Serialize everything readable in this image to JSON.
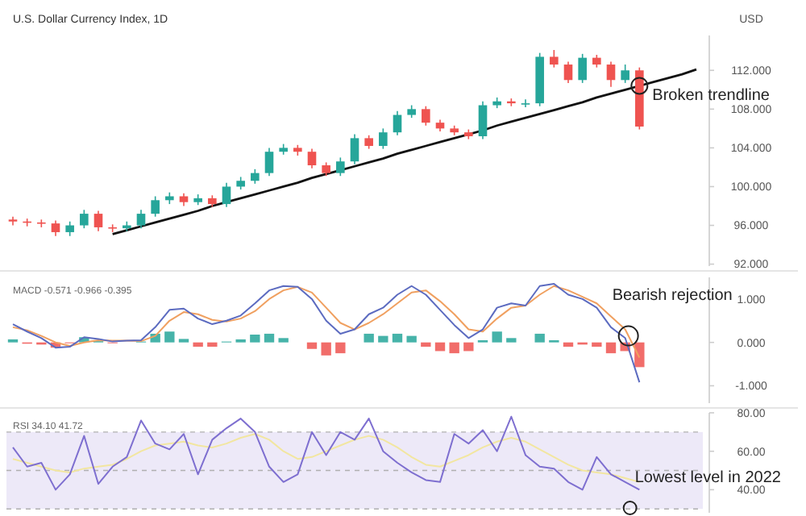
{
  "chart_data": [
    {
      "type": "candlestick",
      "title": "U.S. Dollar Currency Index, 1D",
      "ylabel": "USD",
      "grid": false,
      "categories": [
        null,
        null,
        null,
        null,
        null,
        null,
        null,
        null,
        null,
        null,
        null,
        null,
        null,
        null,
        null,
        null,
        null,
        null,
        null,
        null,
        null,
        null,
        null,
        null,
        null,
        null,
        null,
        null,
        null,
        null,
        null,
        null,
        null,
        null,
        null,
        null,
        null,
        null,
        null,
        null,
        null,
        null,
        null,
        null,
        null,
        null,
        null,
        null,
        null
      ],
      "ohlc": [
        [
          96.6,
          96.9,
          96.0,
          96.4
        ],
        [
          96.4,
          96.7,
          95.9,
          96.3
        ],
        [
          96.3,
          96.6,
          95.8,
          96.2
        ],
        [
          96.2,
          96.5,
          94.9,
          95.3
        ],
        [
          95.3,
          96.4,
          94.9,
          96.0
        ],
        [
          96.0,
          97.6,
          95.7,
          97.2
        ],
        [
          97.2,
          97.5,
          95.4,
          95.8
        ],
        [
          95.8,
          96.1,
          95.3,
          95.7
        ],
        [
          95.7,
          96.4,
          95.4,
          96.0
        ],
        [
          96.0,
          97.6,
          95.7,
          97.2
        ],
        [
          97.2,
          99.0,
          96.9,
          98.6
        ],
        [
          98.6,
          99.4,
          98.2,
          99.0
        ],
        [
          99.0,
          99.3,
          98.0,
          98.4
        ],
        [
          98.4,
          99.2,
          98.1,
          98.8
        ],
        [
          98.8,
          99.1,
          97.9,
          98.2
        ],
        [
          98.2,
          100.4,
          97.9,
          100.0
        ],
        [
          100.0,
          101.0,
          99.7,
          100.6
        ],
        [
          100.6,
          101.8,
          100.3,
          101.4
        ],
        [
          101.4,
          104.0,
          101.1,
          103.6
        ],
        [
          103.6,
          104.4,
          103.3,
          104.0
        ],
        [
          104.0,
          104.3,
          103.2,
          103.6
        ],
        [
          103.6,
          103.9,
          101.9,
          102.2
        ],
        [
          102.2,
          102.5,
          101.1,
          101.4
        ],
        [
          101.4,
          103.0,
          101.1,
          102.6
        ],
        [
          102.6,
          105.4,
          102.3,
          105.0
        ],
        [
          105.0,
          105.3,
          103.9,
          104.2
        ],
        [
          104.2,
          106.0,
          103.9,
          105.6
        ],
        [
          105.6,
          107.8,
          105.3,
          107.4
        ],
        [
          107.4,
          108.4,
          107.1,
          108.0
        ],
        [
          108.0,
          108.3,
          106.3,
          106.6
        ],
        [
          106.6,
          106.9,
          105.7,
          106.0
        ],
        [
          106.0,
          106.3,
          105.3,
          105.6
        ],
        [
          105.6,
          105.9,
          104.9,
          105.2
        ],
        [
          105.2,
          108.8,
          104.9,
          108.4
        ],
        [
          108.4,
          109.2,
          108.1,
          108.8
        ],
        [
          108.8,
          109.1,
          108.3,
          108.6
        ],
        [
          108.6,
          109.0,
          108.2,
          108.6
        ],
        [
          108.6,
          113.8,
          108.3,
          113.4
        ],
        [
          113.4,
          114.1,
          112.3,
          112.6
        ],
        [
          112.6,
          112.9,
          110.7,
          111.0
        ],
        [
          111.0,
          113.7,
          110.7,
          113.3
        ],
        [
          113.3,
          113.6,
          112.3,
          112.6
        ],
        [
          112.6,
          112.9,
          110.3,
          111.0
        ],
        [
          111.0,
          112.6,
          110.7,
          112.0
        ],
        [
          112.0,
          112.3,
          105.9,
          106.2
        ],
        null,
        null,
        null,
        null
      ],
      "series": [
        {
          "type": "line",
          "color": "#111111",
          "values": [
            null,
            null,
            null,
            null,
            null,
            null,
            null,
            95.1,
            95.5,
            95.9,
            96.3,
            96.7,
            97.1,
            97.5,
            98.0,
            98.4,
            98.8,
            99.2,
            99.6,
            100.0,
            100.4,
            100.9,
            101.3,
            101.7,
            102.1,
            102.5,
            102.9,
            103.4,
            103.8,
            104.2,
            104.6,
            105.0,
            105.4,
            105.8,
            106.3,
            106.7,
            107.1,
            107.5,
            107.9,
            108.3,
            108.7,
            109.2,
            109.6,
            110.0,
            110.4,
            110.8,
            111.2,
            111.6,
            112.1
          ]
        }
      ],
      "ylim": [
        91.8,
        115.6
      ],
      "yticks": [
        {
          "value": 92,
          "label": "92.000"
        },
        {
          "value": 96,
          "label": "96.000"
        },
        {
          "value": 100,
          "label": "100.000"
        },
        {
          "value": 104,
          "label": "104.000"
        },
        {
          "value": 108,
          "label": "108.000"
        },
        {
          "value": 112,
          "label": "112.000"
        }
      ],
      "annotations": [
        "Broken trendline"
      ]
    },
    {
      "type": "line",
      "grid": false,
      "categories": [
        null,
        null,
        null,
        null,
        null,
        null,
        null,
        null,
        null,
        null,
        null,
        null,
        null,
        null,
        null,
        null,
        null,
        null,
        null,
        null,
        null,
        null,
        null,
        null,
        null,
        null,
        null,
        null,
        null,
        null,
        null,
        null,
        null,
        null,
        null,
        null,
        null,
        null,
        null,
        null,
        null,
        null,
        null,
        null,
        null,
        null,
        null,
        null,
        null
      ],
      "series": [
        {
          "type": "bar",
          "color": "#26a69a",
          "values": [
            0.07,
            null,
            null,
            null,
            null,
            0.12,
            0.03,
            null,
            0,
            0.02,
            0.2,
            0.25,
            0.08,
            null,
            null,
            0.02,
            0.07,
            0.18,
            0.2,
            0.1,
            0,
            null,
            null,
            null,
            0,
            0.2,
            0.15,
            0.2,
            0.15,
            null,
            null,
            null,
            null,
            0.05,
            0.25,
            0.1,
            0,
            0.2,
            0.05,
            null,
            null,
            null,
            null,
            null,
            null,
            null,
            null,
            null,
            null
          ]
        },
        {
          "type": "bar",
          "color": "#ef5350",
          "values": [
            null,
            -0.03,
            -0.05,
            -0.12,
            -0.02,
            null,
            null,
            -0.02,
            null,
            null,
            null,
            null,
            null,
            -0.1,
            -0.1,
            null,
            null,
            null,
            null,
            null,
            null,
            -0.15,
            -0.3,
            -0.25,
            null,
            null,
            null,
            null,
            null,
            -0.1,
            -0.2,
            -0.25,
            -0.2,
            null,
            null,
            null,
            null,
            null,
            null,
            -0.1,
            -0.05,
            -0.1,
            -0.25,
            -0.2,
            -0.57,
            null,
            null,
            null,
            null
          ]
        },
        {
          "type": "line",
          "color": "#f0a060",
          "values": [
            0.35,
            0.28,
            0.15,
            0.0,
            -0.08,
            0.0,
            0.05,
            0.04,
            0.04,
            0.03,
            0.15,
            0.5,
            0.7,
            0.65,
            0.52,
            0.48,
            0.55,
            0.72,
            1.0,
            1.2,
            1.28,
            1.15,
            0.8,
            0.45,
            0.3,
            0.45,
            0.65,
            0.9,
            1.15,
            1.2,
            0.95,
            0.65,
            0.3,
            0.25,
            0.55,
            0.8,
            0.85,
            1.1,
            1.3,
            1.2,
            1.05,
            0.9,
            0.6,
            0.3,
            -0.35,
            null,
            null,
            null,
            null
          ]
        },
        {
          "type": "line",
          "color": "#5c6bc0",
          "values": [
            0.42,
            0.25,
            0.1,
            -0.12,
            -0.1,
            0.12,
            0.08,
            0.02,
            0.04,
            0.05,
            0.35,
            0.75,
            0.78,
            0.55,
            0.42,
            0.5,
            0.62,
            0.9,
            1.2,
            1.3,
            1.28,
            1.0,
            0.5,
            0.2,
            0.3,
            0.65,
            0.8,
            1.1,
            1.3,
            1.1,
            0.75,
            0.4,
            0.1,
            0.3,
            0.8,
            0.9,
            0.85,
            1.3,
            1.35,
            1.1,
            1.0,
            0.8,
            0.35,
            0.1,
            -0.92,
            null,
            null,
            null,
            null
          ]
        }
      ],
      "ylim": [
        -1.4,
        1.5
      ],
      "yticks": [
        {
          "value": -1,
          "label": "-1.000"
        },
        {
          "value": 0,
          "label": "0.000"
        },
        {
          "value": 1,
          "label": "1.000"
        }
      ],
      "annotations": [
        "MACD -0.571 -0.966 -0.395",
        "Bearish rejection"
      ]
    },
    {
      "type": "line",
      "grid": false,
      "categories": [
        null,
        null,
        null,
        null,
        null,
        null,
        null,
        null,
        null,
        null,
        null,
        null,
        null,
        null,
        null,
        null,
        null,
        null,
        null,
        null,
        null,
        null,
        null,
        null,
        null,
        null,
        null,
        null,
        null,
        null,
        null,
        null,
        null,
        null,
        null,
        null,
        null,
        null,
        null,
        null,
        null,
        null,
        null,
        null,
        null,
        null,
        null,
        null,
        null
      ],
      "series": [
        {
          "type": "line",
          "color": "#f2e6a0",
          "values": [
            56,
            54,
            52,
            50,
            49,
            51,
            52,
            53,
            56,
            60,
            63,
            64,
            65,
            63,
            62,
            64,
            67,
            69,
            66,
            60,
            56,
            57,
            60,
            63,
            66,
            68,
            66,
            62,
            57,
            53,
            52,
            55,
            58,
            62,
            65,
            67,
            65,
            61,
            57,
            53,
            50,
            49,
            48,
            46,
            44,
            null,
            null,
            null,
            null
          ]
        },
        {
          "type": "line",
          "color": "#7e6fd0",
          "values": [
            62,
            52,
            54,
            40,
            48,
            68,
            43,
            52,
            57,
            76,
            64,
            61,
            69,
            48,
            66,
            72,
            77,
            70,
            52,
            44,
            48,
            70,
            58,
            70,
            66,
            77,
            60,
            54,
            49,
            45,
            44,
            69,
            64,
            71,
            60,
            78,
            58,
            52,
            51,
            44,
            40,
            57,
            48,
            44,
            40,
            null,
            null,
            null,
            null
          ]
        }
      ],
      "ylim": [
        28,
        80
      ],
      "yticks": [
        {
          "value": 40,
          "label": "40.00"
        },
        {
          "value": 60,
          "label": "60.00"
        },
        {
          "value": 80,
          "label": "80.00"
        }
      ],
      "bands": [
        {
          "axis": "y",
          "from": 30,
          "to": 70,
          "color": "#ede9f8"
        }
      ],
      "ref_lines": [
        {
          "axis": "y",
          "value": 70,
          "line_style": "dashed",
          "color": "#b0b0b0"
        },
        {
          "axis": "y",
          "value": 50,
          "line_style": "dashed",
          "color": "#b0b0b0"
        },
        {
          "axis": "y",
          "value": 30,
          "line_style": "dashed",
          "color": "#b0b0b0"
        }
      ],
      "annotations": [
        "RSI 34.10 41.72",
        "Lowest level in 2022"
      ]
    }
  ]
}
